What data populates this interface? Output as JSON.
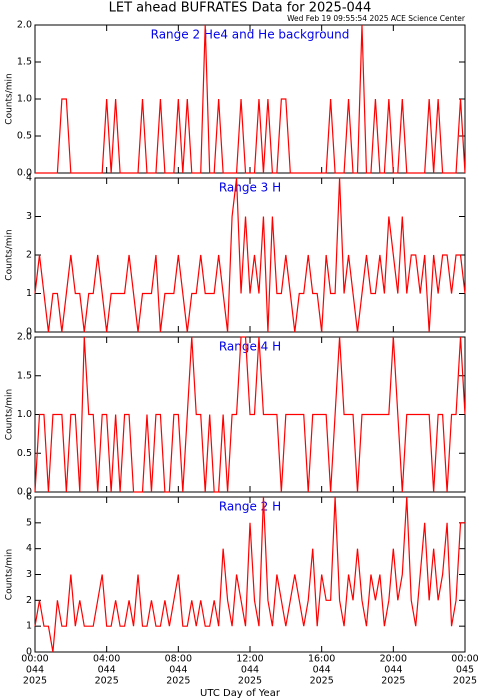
{
  "header": {
    "title": "LET ahead BUFRATES Data for 2025-044",
    "subtitle": "Wed Feb 19 09:55:54 2025 ACE Science Center"
  },
  "x_axis": {
    "label": "UTC Day of Year",
    "xlim": [
      0,
      24
    ],
    "xticks": [
      {
        "value": 0,
        "label": "00:00"
      },
      {
        "value": 4,
        "label": "04:00"
      },
      {
        "value": 8,
        "label": "08:00"
      },
      {
        "value": 12,
        "label": "12:00"
      },
      {
        "value": 16,
        "label": "16:00"
      },
      {
        "value": 20,
        "label": "20:00"
      },
      {
        "value": 24,
        "label": "00:00"
      }
    ],
    "xtick_day": [
      "044",
      "044",
      "044",
      "044",
      "044",
      "044",
      "045"
    ],
    "xtick_year": [
      "2025",
      "2025",
      "2025",
      "2025",
      "2025",
      "2025",
      "2025"
    ],
    "x": [
      0,
      0.25,
      0.5,
      0.75,
      1,
      1.25,
      1.5,
      1.75,
      2,
      2.25,
      2.5,
      2.75,
      3,
      3.25,
      3.5,
      3.75,
      4,
      4.25,
      4.5,
      4.75,
      5,
      5.25,
      5.5,
      5.75,
      6,
      6.25,
      6.5,
      6.75,
      7,
      7.25,
      7.5,
      7.75,
      8,
      8.25,
      8.5,
      8.75,
      9,
      9.25,
      9.5,
      9.75,
      10,
      10.25,
      10.5,
      10.75,
      11,
      11.25,
      11.5,
      11.75,
      12,
      12.25,
      12.5,
      12.75,
      13,
      13.25,
      13.5,
      13.75,
      14,
      14.25,
      14.5,
      14.75,
      15,
      15.25,
      15.5,
      15.75,
      16,
      16.25,
      16.5,
      16.75,
      17,
      17.25,
      17.5,
      17.75,
      18,
      18.25,
      18.5,
      18.75,
      19,
      19.25,
      19.5,
      19.75,
      20,
      20.25,
      20.5,
      20.75,
      21,
      21.25,
      21.5,
      21.75,
      22,
      22.25,
      22.5,
      22.75,
      23,
      23.25,
      23.5,
      23.75,
      24
    ]
  },
  "chart_data": [
    {
      "type": "line",
      "title": "Range 2 He4 and He background",
      "ylabel": "Counts/min",
      "color": "#ff0000",
      "ylim": [
        0,
        2
      ],
      "yticks": [
        {
          "value": 0,
          "label": "0.0"
        },
        {
          "value": 0.5,
          "label": "0.5"
        },
        {
          "value": 1,
          "label": "1.0"
        },
        {
          "value": 1.5,
          "label": "1.5"
        },
        {
          "value": 2,
          "label": "2.0"
        }
      ],
      "values": [
        0,
        0,
        0,
        0,
        0,
        0,
        1,
        1,
        0,
        0,
        0,
        0,
        0,
        0,
        0,
        0,
        1,
        0,
        1,
        0,
        0,
        0,
        0,
        0,
        1,
        0,
        0,
        0,
        1,
        0,
        0,
        0,
        1,
        0,
        1,
        0,
        0,
        0,
        2,
        0,
        0,
        1,
        0,
        0,
        0,
        0,
        1,
        0,
        0,
        0,
        1,
        0,
        1,
        0,
        0,
        1,
        1,
        0,
        0,
        0,
        0,
        0,
        0,
        0,
        0,
        0,
        1,
        0,
        0,
        0,
        1,
        0,
        0,
        2,
        0,
        0,
        1,
        0,
        0,
        1,
        0,
        0,
        1,
        0,
        0,
        0,
        0,
        0,
        1,
        0,
        1,
        0,
        0,
        0,
        0,
        1,
        0
      ]
    },
    {
      "type": "line",
      "title": "Range 3 H",
      "ylabel": "Counts/min",
      "color": "#ff0000",
      "ylim": [
        0,
        4
      ],
      "yticks": [
        0,
        1,
        2,
        3,
        4
      ],
      "values": [
        1,
        2,
        1,
        0,
        1,
        1,
        0,
        1,
        2,
        1,
        1,
        0,
        1,
        1,
        2,
        1,
        0,
        1,
        1,
        1,
        1,
        2,
        1,
        0,
        1,
        1,
        1,
        2,
        0,
        1,
        1,
        1,
        2,
        1,
        0,
        1,
        1,
        2,
        1,
        1,
        1,
        2,
        1,
        0,
        3,
        4,
        1,
        3,
        1,
        2,
        1,
        3,
        0,
        3,
        1,
        1,
        2,
        1,
        0,
        1,
        1,
        2,
        1,
        1,
        0,
        2,
        1,
        1,
        4,
        1,
        2,
        1,
        0,
        1,
        2,
        1,
        1,
        2,
        1,
        3,
        2,
        1,
        3,
        1,
        2,
        2,
        1,
        2,
        0,
        2,
        1,
        2,
        2,
        1,
        2,
        2,
        1
      ]
    },
    {
      "type": "line",
      "title": "Range 4 H",
      "ylabel": "Counts/min",
      "color": "#ff0000",
      "ylim": [
        0,
        2
      ],
      "yticks": [
        {
          "value": 0,
          "label": "0.0"
        },
        {
          "value": 0.5,
          "label": "0.5"
        },
        {
          "value": 1,
          "label": "1.0"
        },
        {
          "value": 1.5,
          "label": "1.5"
        },
        {
          "value": 2,
          "label": "2.0"
        }
      ],
      "values": [
        0,
        1,
        1,
        0,
        1,
        1,
        1,
        0,
        1,
        1,
        0,
        2,
        1,
        1,
        0,
        1,
        1,
        0,
        1,
        0,
        1,
        1,
        0,
        0,
        0,
        1,
        0,
        1,
        1,
        0,
        0,
        1,
        1,
        0,
        1,
        2,
        1,
        1,
        0,
        1,
        0,
        0,
        1,
        0,
        1,
        1,
        2,
        2,
        1,
        1,
        2,
        1,
        1,
        1,
        1,
        0,
        1,
        1,
        1,
        1,
        1,
        0,
        1,
        1,
        1,
        1,
        0,
        1,
        2,
        1,
        1,
        1,
        0,
        1,
        1,
        1,
        1,
        1,
        1,
        1,
        2,
        1,
        0,
        1,
        1,
        1,
        1,
        1,
        1,
        0,
        1,
        1,
        0,
        1,
        1,
        2,
        1
      ]
    },
    {
      "type": "line",
      "title": "Range 2 H",
      "ylabel": "Counts/min",
      "color": "#ff0000",
      "ylim": [
        0,
        6
      ],
      "yticks": [
        0,
        1,
        2,
        3,
        4,
        5,
        6
      ],
      "values": [
        1,
        2,
        1,
        1,
        0,
        2,
        1,
        1,
        3,
        1,
        2,
        1,
        1,
        1,
        2,
        3,
        1,
        1,
        2,
        1,
        1,
        2,
        1,
        3,
        1,
        1,
        2,
        1,
        1,
        2,
        1,
        2,
        3,
        1,
        1,
        2,
        1,
        2,
        1,
        1,
        2,
        1,
        4,
        2,
        1,
        3,
        2,
        1,
        5,
        2,
        1,
        6,
        2,
        1,
        3,
        2,
        1,
        2,
        3,
        2,
        1,
        2,
        4,
        1,
        3,
        2,
        2,
        6,
        2,
        1,
        3,
        2,
        4,
        2,
        1,
        3,
        2,
        3,
        1,
        2,
        4,
        2,
        3,
        6,
        2,
        1,
        3,
        5,
        2,
        4,
        2,
        3,
        5,
        1,
        2,
        5,
        5
      ]
    }
  ]
}
